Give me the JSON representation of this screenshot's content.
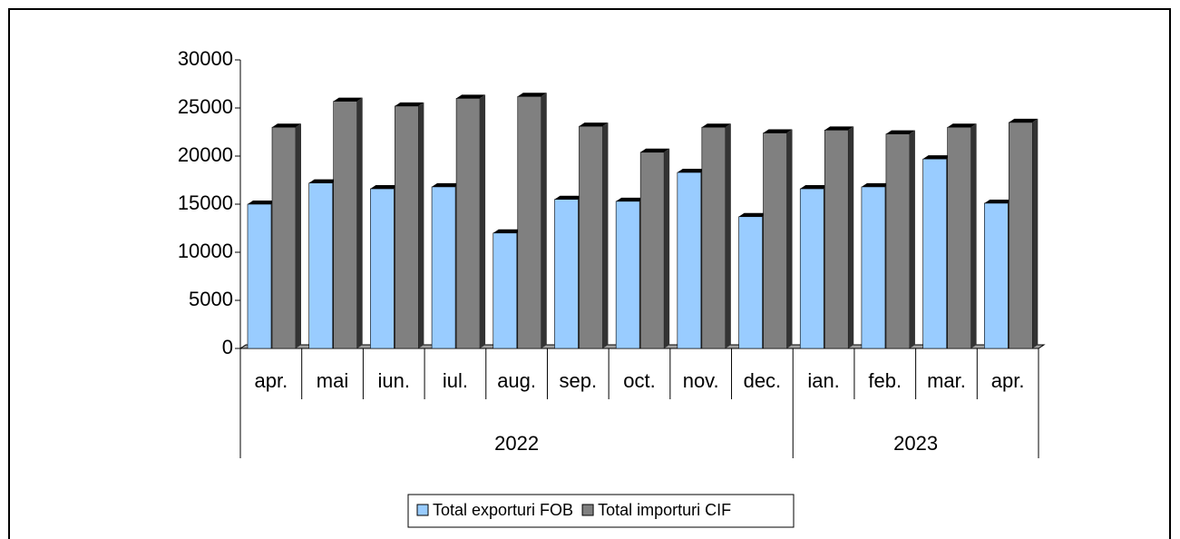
{
  "chart_data": {
    "type": "bar",
    "category_groups": [
      {
        "group": "2022",
        "labels": [
          "apr.",
          "mai",
          "iun.",
          "iul.",
          "aug.",
          "sep.",
          "oct.",
          "nov.",
          "dec."
        ]
      },
      {
        "group": "2023",
        "labels": [
          "ian.",
          "feb.",
          "mar.",
          "apr."
        ]
      }
    ],
    "series": [
      {
        "name": "Total exporturi FOB",
        "color": "#99ccff",
        "values": [
          15000,
          17200,
          16600,
          16800,
          12000,
          15500,
          15300,
          18300,
          13700,
          16600,
          16800,
          19700,
          15100
        ]
      },
      {
        "name": "Total importuri CIF",
        "color": "#808080",
        "values": [
          23000,
          25700,
          25200,
          26000,
          26200,
          23100,
          20400,
          23000,
          22400,
          22700,
          22300,
          23000,
          23500
        ]
      }
    ],
    "ylim": [
      0,
      30000
    ],
    "yticks": [
      0,
      5000,
      10000,
      15000,
      20000,
      25000,
      30000
    ],
    "legend": "bottom"
  }
}
